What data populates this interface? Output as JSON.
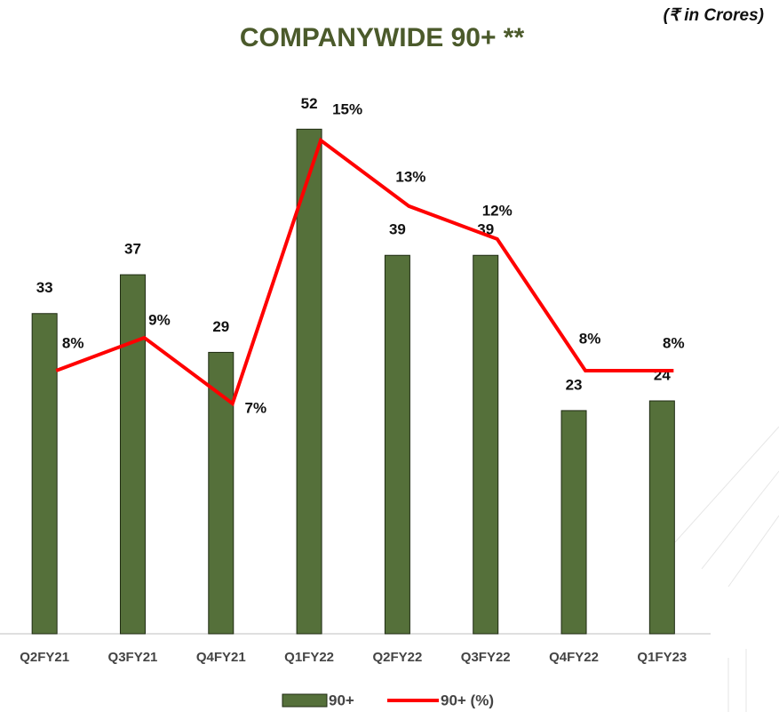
{
  "chart_data": {
    "type": "bar_line",
    "title": "COMPANYWIDE 90+ **",
    "subtitle": "(₹ in Crores)",
    "categories": [
      "Q2FY21",
      "Q3FY21",
      "Q4FY21",
      "Q1FY22",
      "Q2FY22",
      "Q3FY22",
      "Q4FY22",
      "Q1FY23"
    ],
    "series": [
      {
        "name": "90+",
        "type": "bar",
        "color": "#55703a",
        "values": [
          33,
          37,
          29,
          52,
          39,
          39,
          23,
          24
        ]
      },
      {
        "name": "90+ (%)",
        "type": "line",
        "axis": "y2",
        "color": "#ff0000",
        "values": [
          8,
          9,
          7,
          15,
          13,
          12,
          8,
          8
        ],
        "value_labels": [
          "8%",
          "9%",
          "7%",
          "15%",
          "13%",
          "12%",
          "8%",
          "8%"
        ]
      }
    ],
    "ylim": [
      0,
      60
    ],
    "y2lim": [
      0,
      17.7
    ],
    "legend": "bottom"
  }
}
